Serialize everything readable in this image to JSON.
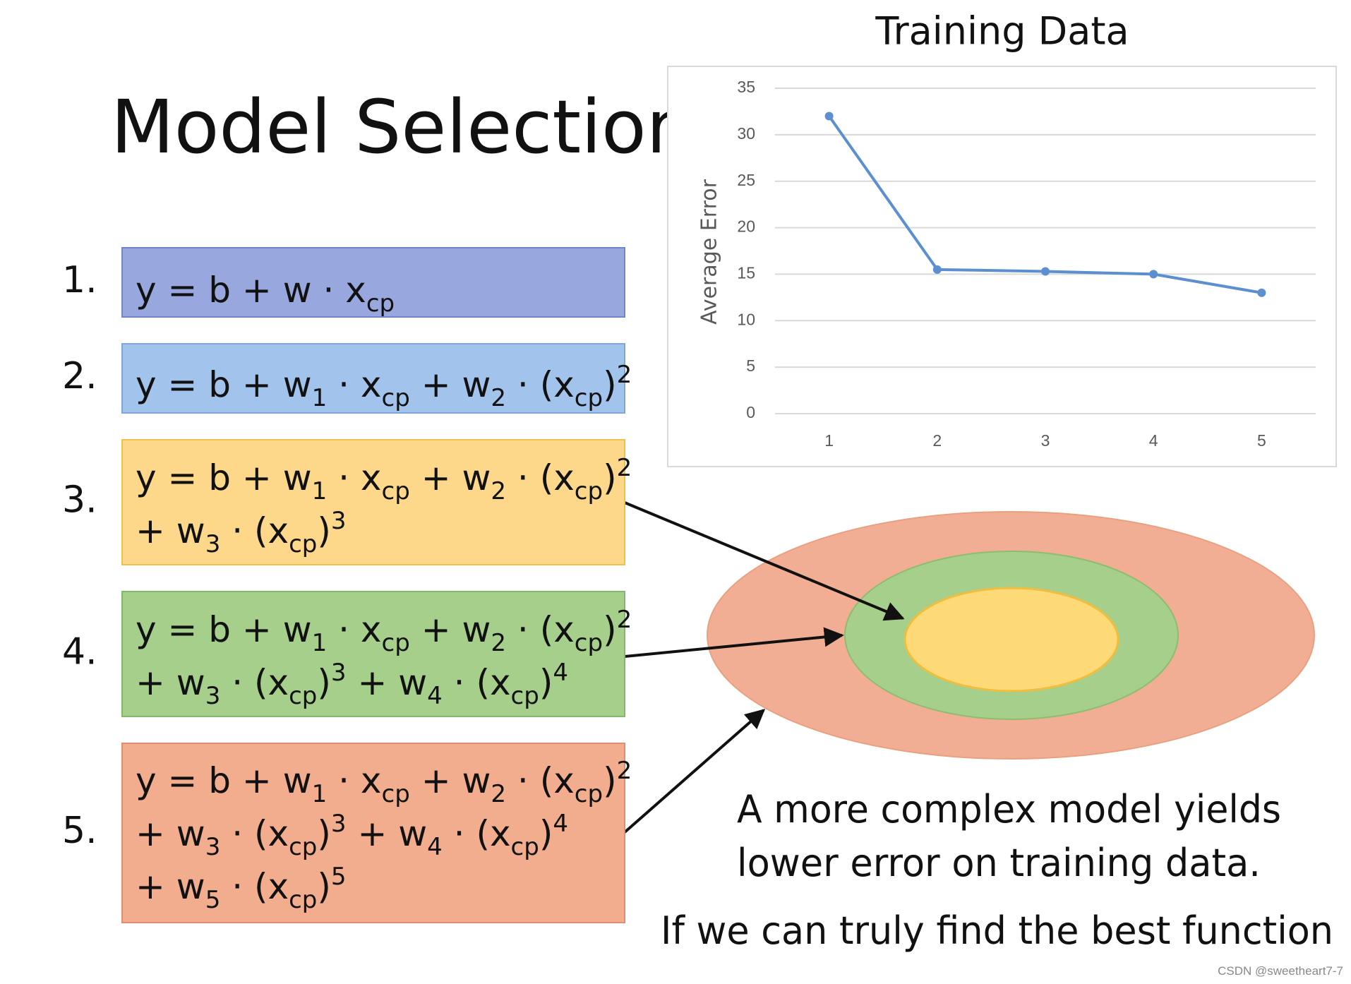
{
  "title": "Model Selection",
  "equations": [
    {
      "number": "1.",
      "lines": [
        [
          {
            "t": "y = b + w · x"
          },
          {
            "sub": "cp"
          }
        ]
      ]
    },
    {
      "number": "2.",
      "lines": [
        [
          {
            "t": "y = b + w"
          },
          {
            "sub": "1"
          },
          {
            "t": " · x"
          },
          {
            "sub": "cp"
          },
          {
            "t": " + w"
          },
          {
            "sub": "2"
          },
          {
            "t": " · (x"
          },
          {
            "sub": "cp"
          },
          {
            "t": ")"
          },
          {
            "sup": "2"
          }
        ]
      ]
    },
    {
      "number": "3.",
      "lines": [
        [
          {
            "t": "y = b + w"
          },
          {
            "sub": "1"
          },
          {
            "t": " · x"
          },
          {
            "sub": "cp"
          },
          {
            "t": " + w"
          },
          {
            "sub": "2"
          },
          {
            "t": " · (x"
          },
          {
            "sub": "cp"
          },
          {
            "t": ")"
          },
          {
            "sup": "2"
          }
        ],
        [
          {
            "t": "+ w"
          },
          {
            "sub": "3"
          },
          {
            "t": " · (x"
          },
          {
            "sub": "cp"
          },
          {
            "t": ")"
          },
          {
            "sup": "3"
          }
        ]
      ]
    },
    {
      "number": "4.",
      "lines": [
        [
          {
            "t": "y = b + w"
          },
          {
            "sub": "1"
          },
          {
            "t": " · x"
          },
          {
            "sub": "cp"
          },
          {
            "t": " + w"
          },
          {
            "sub": "2"
          },
          {
            "t": " · (x"
          },
          {
            "sub": "cp"
          },
          {
            "t": ")"
          },
          {
            "sup": "2"
          }
        ],
        [
          {
            "t": "+ w"
          },
          {
            "sub": "3"
          },
          {
            "t": " · (x"
          },
          {
            "sub": "cp"
          },
          {
            "t": ")"
          },
          {
            "sup": "3"
          },
          {
            "t": " + w"
          },
          {
            "sub": "4"
          },
          {
            "t": " · (x"
          },
          {
            "sub": "cp"
          },
          {
            "t": ")"
          },
          {
            "sup": "4"
          }
        ]
      ]
    },
    {
      "number": "5.",
      "lines": [
        [
          {
            "t": "y = b + w"
          },
          {
            "sub": "1"
          },
          {
            "t": " · x"
          },
          {
            "sub": "cp"
          },
          {
            "t": " + w"
          },
          {
            "sub": "2"
          },
          {
            "t": " · (x"
          },
          {
            "sub": "cp"
          },
          {
            "t": ")"
          },
          {
            "sup": "2"
          }
        ],
        [
          {
            "t": "+ w"
          },
          {
            "sub": "3"
          },
          {
            "t": " · (x"
          },
          {
            "sub": "cp"
          },
          {
            "t": ")"
          },
          {
            "sup": "3"
          },
          {
            "t": " + w"
          },
          {
            "sub": "4"
          },
          {
            "t": " · (x"
          },
          {
            "sub": "cp"
          },
          {
            "t": ")"
          },
          {
            "sup": "4"
          }
        ],
        [
          {
            "t": "+ w"
          },
          {
            "sub": "5"
          },
          {
            "t": " · (x"
          },
          {
            "sub": "cp"
          },
          {
            "t": ")"
          },
          {
            "sup": "5"
          }
        ]
      ]
    }
  ],
  "chart_data": {
    "type": "line",
    "title": "Training Data",
    "y_label": "Average Error",
    "categories": [
      "1",
      "2",
      "3",
      "4",
      "5"
    ],
    "values": [
      32,
      15.5,
      15.3,
      15,
      13
    ],
    "color": "#5b8fd0",
    "ylim": [
      0,
      35
    ],
    "yticks": [
      0,
      5,
      10,
      15,
      20,
      25,
      30,
      35
    ],
    "grid": true
  },
  "caption": [
    "A more complex model yields",
    "lower error on training data."
  ],
  "note": "If we can truly find the best function",
  "watermark": "CSDN @sweetheart7-7"
}
